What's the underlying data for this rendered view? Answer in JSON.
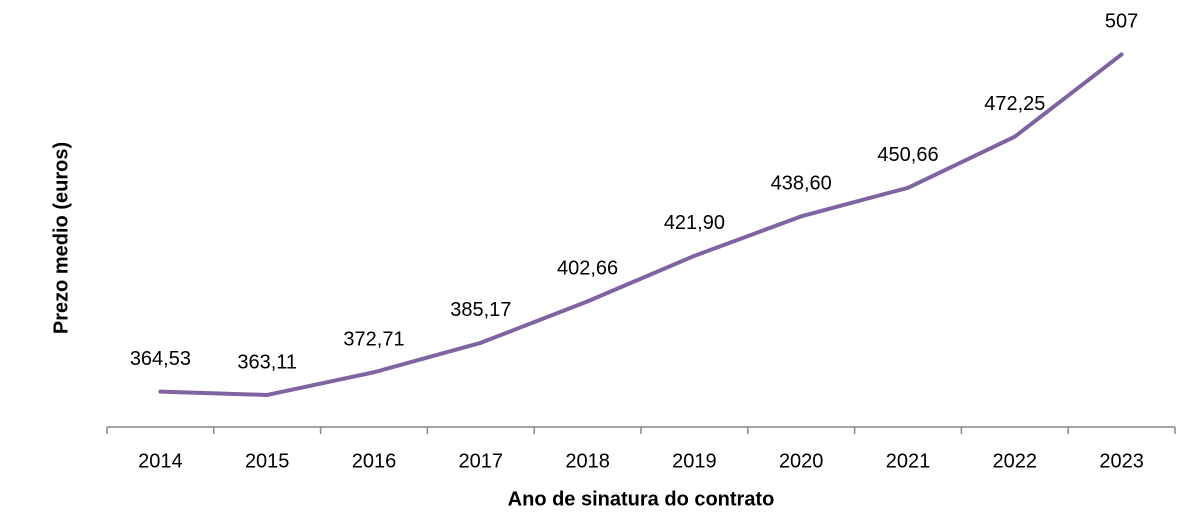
{
  "chart_data": {
    "type": "line",
    "x_label": "Ano de sinatura do contrato",
    "y_label": "Prezo medio (euros)",
    "categories": [
      "2014",
      "2015",
      "2016",
      "2017",
      "2018",
      "2019",
      "2020",
      "2021",
      "2022",
      "2023"
    ],
    "values": [
      364.53,
      363.11,
      372.71,
      385.17,
      402.66,
      421.9,
      438.6,
      450.66,
      472.25,
      507
    ],
    "value_labels": [
      "364,53",
      "363,11",
      "372,71",
      "385,17",
      "402,66",
      "421,90",
      "438,60",
      "450,66",
      "472,25",
      "507"
    ],
    "color": "#8064a2",
    "ylim": [
      350,
      530
    ]
  }
}
